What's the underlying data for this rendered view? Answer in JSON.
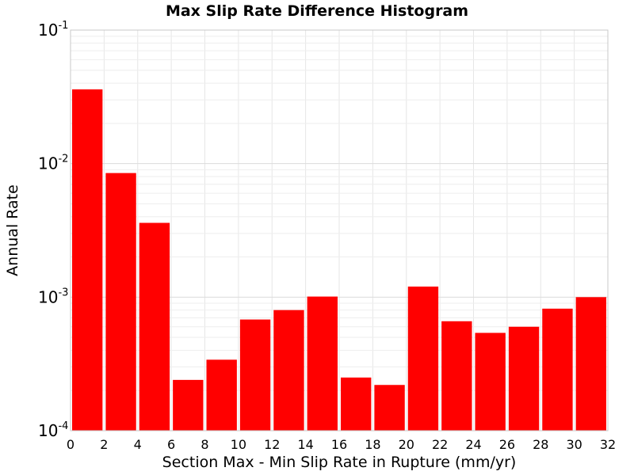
{
  "chart_data": {
    "type": "bar",
    "title": "Max Slip Rate Difference Histogram",
    "xlabel": "Section Max - Min Slip Rate in Rupture (mm/yr)",
    "ylabel": "Annual Rate",
    "xlim": [
      0,
      32
    ],
    "ylim": [
      0.0001,
      0.1
    ],
    "yscale": "log",
    "grid": true,
    "legend": "none",
    "bar_color": "#ff0000",
    "bin_width": 2,
    "x_ticks": [
      "0",
      "2",
      "4",
      "6",
      "8",
      "10",
      "12",
      "14",
      "16",
      "18",
      "20",
      "22",
      "24",
      "26",
      "28",
      "30",
      "32"
    ],
    "y_ticks": [
      {
        "base": "10",
        "exp": "-4",
        "value": 0.0001
      },
      {
        "base": "10",
        "exp": "-3",
        "value": 0.001
      },
      {
        "base": "10",
        "exp": "-2",
        "value": 0.01
      },
      {
        "base": "10",
        "exp": "-1",
        "value": 0.1
      }
    ],
    "bins": [
      {
        "x0": 0,
        "x1": 2,
        "value": 0.036
      },
      {
        "x0": 2,
        "x1": 4,
        "value": 0.0085
      },
      {
        "x0": 4,
        "x1": 6,
        "value": 0.0036
      },
      {
        "x0": 6,
        "x1": 8,
        "value": 0.00024
      },
      {
        "x0": 8,
        "x1": 10,
        "value": 0.00034
      },
      {
        "x0": 10,
        "x1": 12,
        "value": 0.00068
      },
      {
        "x0": 12,
        "x1": 14,
        "value": 0.0008
      },
      {
        "x0": 14,
        "x1": 16,
        "value": 0.00101
      },
      {
        "x0": 16,
        "x1": 18,
        "value": 0.00025
      },
      {
        "x0": 18,
        "x1": 20,
        "value": 0.00022
      },
      {
        "x0": 20,
        "x1": 22,
        "value": 0.0012
      },
      {
        "x0": 22,
        "x1": 24,
        "value": 0.00066
      },
      {
        "x0": 24,
        "x1": 26,
        "value": 0.00054
      },
      {
        "x0": 26,
        "x1": 28,
        "value": 0.0006
      },
      {
        "x0": 28,
        "x1": 30,
        "value": 0.00082
      },
      {
        "x0": 30,
        "x1": 32,
        "value": 0.001
      }
    ]
  }
}
